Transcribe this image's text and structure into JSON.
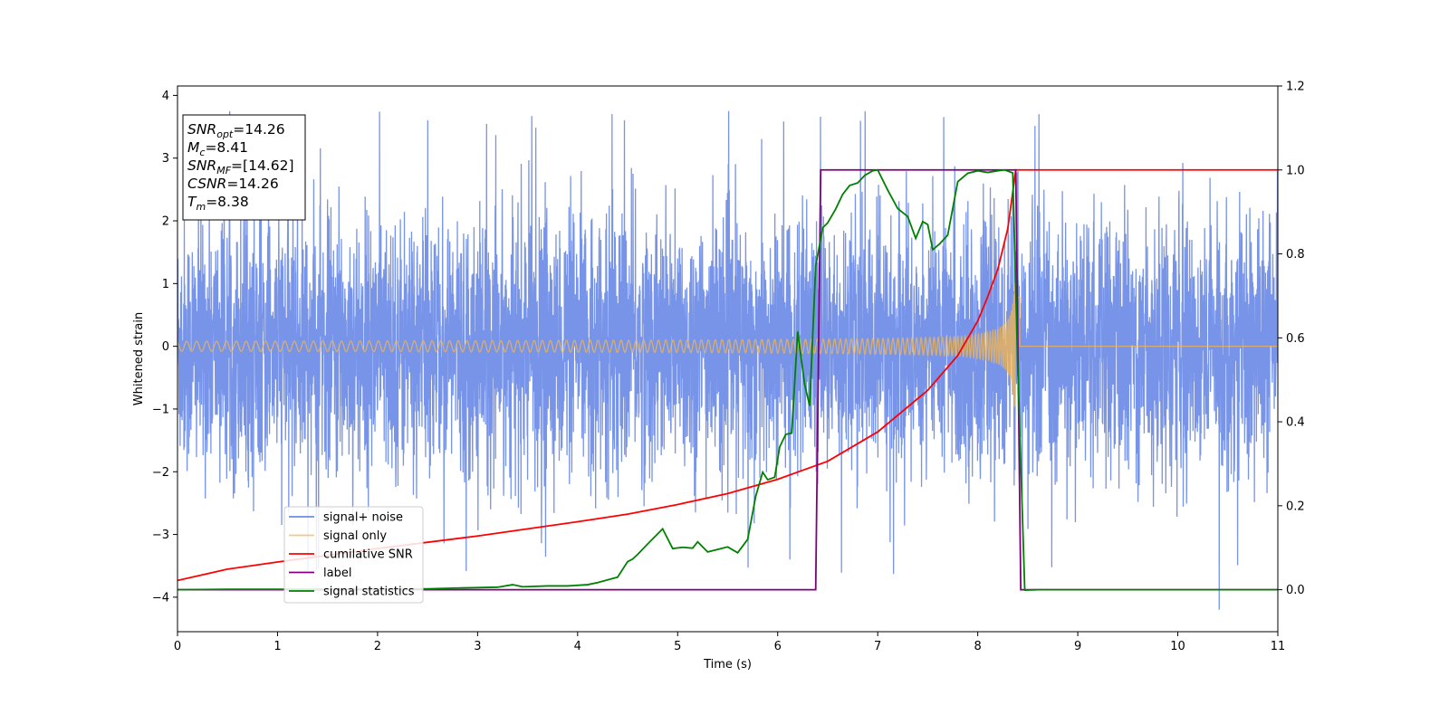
{
  "chart_data": {
    "type": "line",
    "xlabel": "Time (s)",
    "ylabel": "Whitened strain",
    "xlim": [
      0,
      11
    ],
    "ylim_left": [
      -4.55,
      4.15
    ],
    "ylim_right": [
      -0.1,
      1.2
    ],
    "x_ticks": [
      0,
      1,
      2,
      3,
      4,
      5,
      6,
      7,
      8,
      9,
      10,
      11
    ],
    "y_left_ticks": [
      -4,
      -3,
      -2,
      -1,
      0,
      1,
      2,
      3,
      4
    ],
    "y_right_ticks": [
      0.0,
      0.2,
      0.4,
      0.6,
      0.8,
      1.0,
      1.2
    ],
    "grid": false,
    "legend_position": "lower-left",
    "annotation": [
      {
        "sym": "SNR",
        "sub": "opt",
        "value": "=14.26"
      },
      {
        "sym": "M",
        "sub": "c",
        "value": "=8.41"
      },
      {
        "sym": "SNR",
        "sub": "MF",
        "value": "=[14.62]"
      },
      {
        "sym": "CSNR",
        "sub": "",
        "value": "=14.26"
      },
      {
        "sym": "T",
        "sub": "m",
        "value": "=8.38"
      }
    ],
    "series": [
      {
        "name": "signal+ noise",
        "axis": "left",
        "color": "#6b8be6",
        "kind": "noise",
        "noise_sigma": 1.0,
        "noise_extreme": 3.75,
        "x_range": [
          0,
          11
        ]
      },
      {
        "name": "signal only",
        "axis": "left",
        "color": "#f5b74f",
        "kind": "chirp",
        "merger_time": 8.38,
        "amplitude_start": 0.08,
        "amplitude_peak": 1.05,
        "end_time": 8.42
      },
      {
        "name": "cumilative SNR",
        "axis": "right",
        "color": "#ff0000",
        "x": [
          0,
          0.5,
          1,
          1.5,
          2,
          2.5,
          3,
          3.5,
          4,
          4.5,
          5,
          5.5,
          6,
          6.5,
          7,
          7.5,
          7.8,
          8.0,
          8.1,
          8.2,
          8.3,
          8.38,
          11
        ],
        "y": [
          0.022,
          0.049,
          0.066,
          0.082,
          0.098,
          0.113,
          0.128,
          0.145,
          0.162,
          0.18,
          0.203,
          0.229,
          0.263,
          0.306,
          0.376,
          0.475,
          0.558,
          0.64,
          0.698,
          0.763,
          0.86,
          1.0,
          1.0
        ]
      },
      {
        "name": "label",
        "axis": "right",
        "color": "#800080",
        "x": [
          0,
          6.38,
          6.43,
          8.38,
          8.43,
          11
        ],
        "y": [
          0,
          0,
          1,
          1,
          0,
          0
        ]
      },
      {
        "name": "signal statistics",
        "axis": "right",
        "color": "#008000",
        "x": [
          0,
          0.5,
          1,
          1.5,
          2,
          2.5,
          2.8,
          3.0,
          3.2,
          3.35,
          3.45,
          3.7,
          3.9,
          4.1,
          4.2,
          4.4,
          4.5,
          4.55,
          4.6,
          4.7,
          4.85,
          4.95,
          5.05,
          5.15,
          5.2,
          5.3,
          5.4,
          5.5,
          5.6,
          5.7,
          5.78,
          5.85,
          5.9,
          5.97,
          6.02,
          6.08,
          6.14,
          6.2,
          6.27,
          6.32,
          6.38,
          6.45,
          6.5,
          6.58,
          6.65,
          6.72,
          6.8,
          6.87,
          6.95,
          7.0,
          7.1,
          7.2,
          7.3,
          7.38,
          7.45,
          7.5,
          7.55,
          7.62,
          7.7,
          7.8,
          7.9,
          8.0,
          8.1,
          8.2,
          8.27,
          8.35,
          8.4,
          8.47,
          8.6,
          9,
          10,
          11
        ],
        "y": [
          0.0,
          0.001,
          0.001,
          0.001,
          0.001,
          0.002,
          0.004,
          0.005,
          0.006,
          0.012,
          0.007,
          0.009,
          0.009,
          0.012,
          0.017,
          0.03,
          0.067,
          0.073,
          0.084,
          0.109,
          0.145,
          0.098,
          0.101,
          0.099,
          0.114,
          0.09,
          0.096,
          0.102,
          0.088,
          0.12,
          0.222,
          0.28,
          0.262,
          0.268,
          0.34,
          0.37,
          0.373,
          0.615,
          0.488,
          0.438,
          0.771,
          0.862,
          0.874,
          0.907,
          0.942,
          0.963,
          0.969,
          0.987,
          0.998,
          1.0,
          0.952,
          0.908,
          0.889,
          0.837,
          0.877,
          0.87,
          0.81,
          0.824,
          0.845,
          0.972,
          0.992,
          0.998,
          0.994,
          0.998,
          1.0,
          0.993,
          0.533,
          -0.001,
          0.0,
          0.0,
          0.0,
          0.0
        ]
      }
    ]
  }
}
